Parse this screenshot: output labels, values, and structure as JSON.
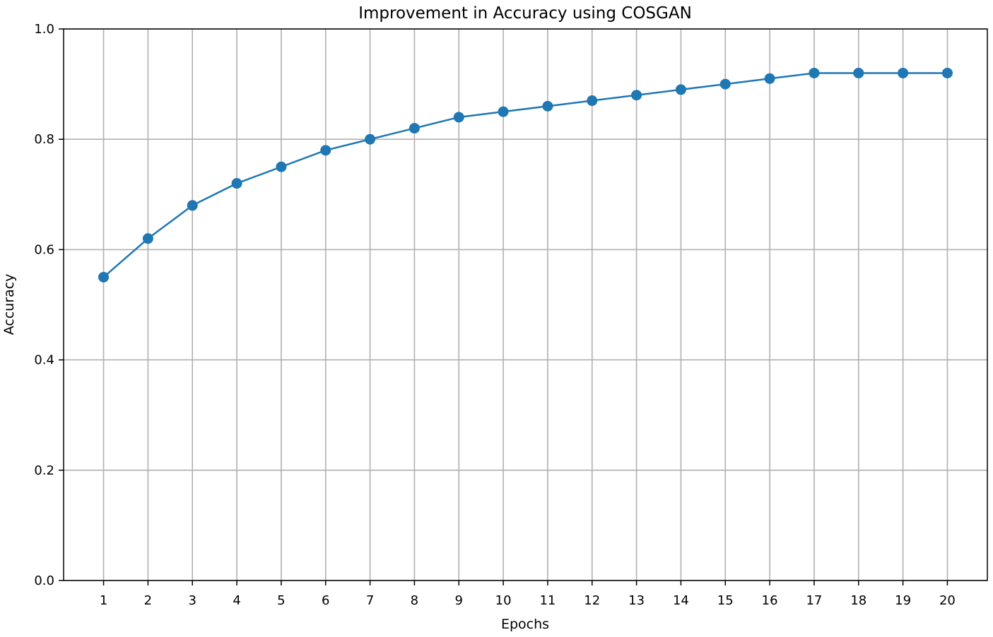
{
  "chart_data": {
    "type": "line",
    "title": "Improvement in Accuracy using COSGAN",
    "xlabel": "Epochs",
    "ylabel": "Accuracy",
    "x": [
      1,
      2,
      3,
      4,
      5,
      6,
      7,
      8,
      9,
      10,
      11,
      12,
      13,
      14,
      15,
      16,
      17,
      18,
      19,
      20
    ],
    "x_tick_labels": [
      "1",
      "2",
      "3",
      "4",
      "5",
      "6",
      "7",
      "8",
      "9",
      "10",
      "11",
      "12",
      "13",
      "14",
      "15",
      "16",
      "17",
      "18",
      "19",
      "20"
    ],
    "y_ticks": [
      0.0,
      0.2,
      0.4,
      0.6,
      0.8,
      1.0
    ],
    "y_tick_labels": [
      "0.0",
      "0.2",
      "0.4",
      "0.6",
      "0.8",
      "1.0"
    ],
    "xlim": [
      0.1,
      20.9
    ],
    "ylim": [
      0.0,
      1.0
    ],
    "grid": true,
    "series": [
      {
        "values": [
          0.55,
          0.62,
          0.68,
          0.72,
          0.75,
          0.78,
          0.8,
          0.82,
          0.84,
          0.85,
          0.86,
          0.87,
          0.88,
          0.89,
          0.9,
          0.91,
          0.92,
          0.92,
          0.92,
          0.92
        ],
        "color": "#1f77b4",
        "marker": "circle"
      }
    ],
    "grid_color": "#b0b0b0"
  }
}
